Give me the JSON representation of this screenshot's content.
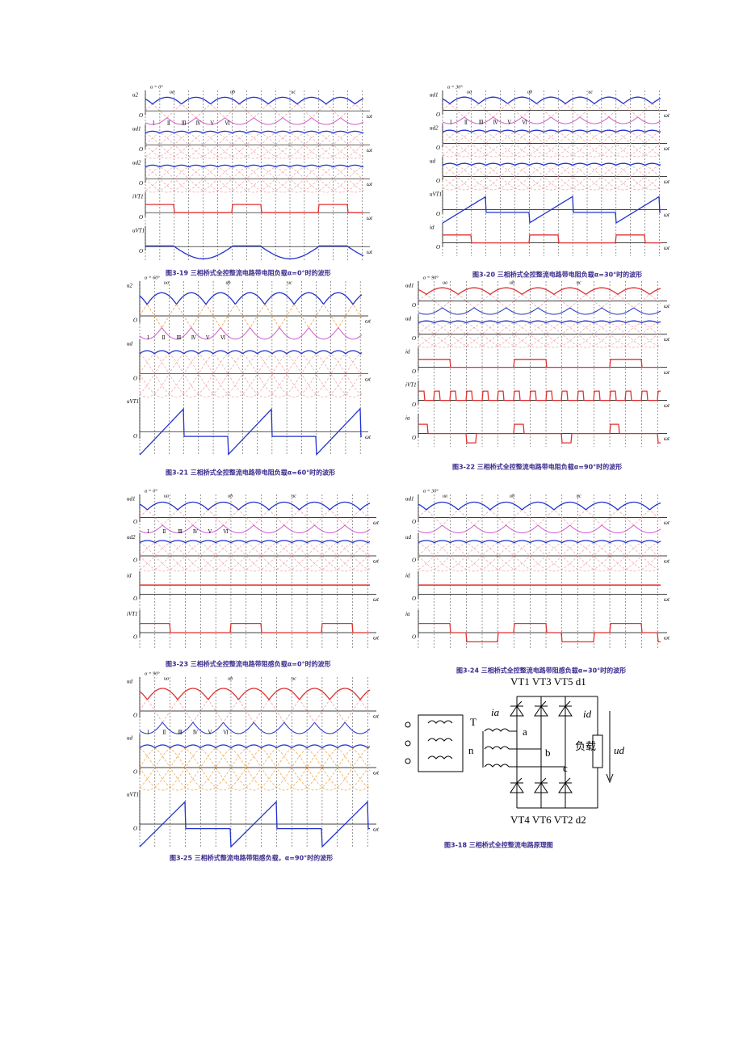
{
  "axis_label": "ωt",
  "origin_label": "O",
  "interval_labels": [
    "Ⅰ",
    "Ⅱ",
    "Ⅲ",
    "Ⅳ",
    "Ⅴ",
    "Ⅵ"
  ],
  "phase_labels": [
    "ua",
    "ub",
    "uc"
  ],
  "figures": [
    {
      "caption": "图3-19 三相桥式全控整流电路带电阻负载α=0°时的波形",
      "alpha": "α = 0°",
      "panels": [
        "u2",
        "ud1",
        "ud2",
        "iVT1",
        "uVT1"
      ]
    },
    {
      "caption": "图3-20 三相桥式全控整流电路带电阻负载α=30°时的波形",
      "alpha": "α = 30°",
      "panels": [
        "ud1",
        "ud2",
        "ud",
        "uVT1",
        "id"
      ]
    },
    {
      "caption": "图3-21 三相桥式全控整流电路带电阻负载α=60°时的波形",
      "alpha": "α = 60°",
      "panels": [
        "u2",
        "ud",
        "uVT1"
      ]
    },
    {
      "caption": "图3-22 三相桥式全控整流电路带电阻负载α=90°时的波形",
      "alpha": "α = 90°",
      "panels": [
        "ud1",
        "ud",
        "id",
        "iVT1",
        "ia"
      ]
    },
    {
      "caption": "图3-23 三相桥式全控整流电路带阻感负载α=0°时的波形",
      "alpha": "α = 0°",
      "panels": [
        "ud1",
        "ud2",
        "id",
        "iVT1"
      ]
    },
    {
      "caption": "图3-24 三相桥式全控整流电路带阻感负载α=30°时的波形",
      "alpha": "α = 30°",
      "panels": [
        "ud1",
        "ud",
        "id",
        "ia"
      ]
    },
    {
      "caption": "图3-25 三相桥式整流电路带阻感负载，α=90°时的波形",
      "alpha": "α = 90°",
      "panels": [
        "ud",
        "ud",
        "uVT1"
      ]
    }
  ],
  "circuit": {
    "caption": "图3-18 三相桥式全控整流电路原理图",
    "top_label": "VT1 VT3 VT5 d1",
    "bottom_label": "VT4 VT6 VT2 d2",
    "transformer": "T",
    "neutral": "n",
    "nodes": [
      "a",
      "b",
      "c"
    ],
    "current_a": "ia",
    "current_d": "id",
    "load": "负载",
    "voltage": "ud"
  }
}
